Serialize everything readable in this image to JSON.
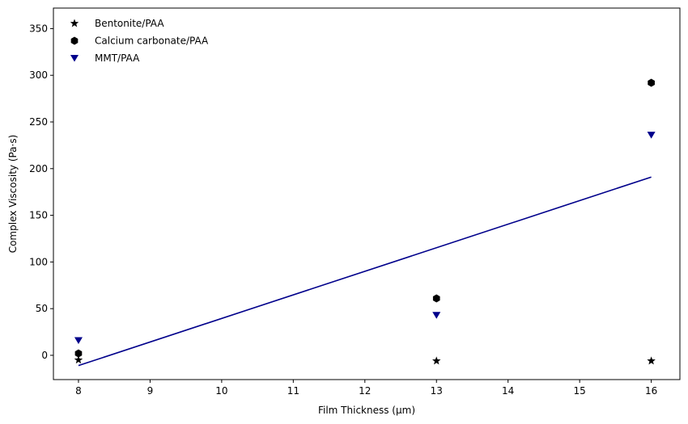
{
  "chart_data": {
    "type": "scatter",
    "xlabel": "Film Thickness (µm)",
    "ylabel": "Complex Viscosity (Pa·s)",
    "xlim": [
      7.65,
      16.4
    ],
    "ylim": [
      -26,
      372
    ],
    "xticks": [
      8,
      9,
      10,
      11,
      12,
      13,
      14,
      15,
      16
    ],
    "yticks": [
      0,
      50,
      100,
      150,
      200,
      250,
      300,
      350
    ],
    "grid": false,
    "legend_position": "top-left",
    "series": [
      {
        "name": "Bentonite/PAA",
        "marker": "star",
        "color": "#000000",
        "x": [
          8,
          13,
          16
        ],
        "y": [
          -5,
          -6,
          -6
        ]
      },
      {
        "name": "Calcium carbonate/PAA",
        "marker": "hexagon",
        "color": "#000000",
        "x": [
          8,
          13,
          16
        ],
        "y": [
          2,
          61,
          292
        ]
      },
      {
        "name": "MMT/PAA",
        "marker": "triangle-down",
        "color": "#00008b",
        "x": [
          8,
          13,
          16
        ],
        "y": [
          16,
          43,
          236
        ]
      }
    ],
    "trend_line": {
      "color": "#00008b",
      "x": [
        8,
        16
      ],
      "y": [
        -11,
        191
      ]
    }
  }
}
